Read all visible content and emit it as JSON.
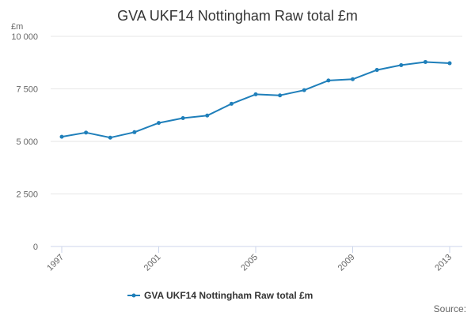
{
  "chart_data": {
    "type": "line",
    "title": "GVA UKF14 Nottingham Raw total £m",
    "ylabel": "£m",
    "xlabel": "",
    "ylim": [
      0,
      10000
    ],
    "yticks": [
      0,
      2500,
      5000,
      7500,
      10000
    ],
    "ytick_labels": [
      "0",
      "2 500",
      "5 000",
      "7 500",
      "10 000"
    ],
    "xlim": [
      1997,
      2013
    ],
    "xticks": [
      1997,
      2001,
      2005,
      2009,
      2013
    ],
    "xtick_labels": [
      "1997",
      "2001",
      "2005",
      "2009",
      "2013"
    ],
    "grid": "horizontal",
    "legend_position": "bottom-center",
    "series": [
      {
        "name": "GVA UKF14 Nottingham Raw total £m",
        "color": "#1f7fba",
        "x": [
          1997,
          1998,
          1999,
          2000,
          2001,
          2002,
          2003,
          2004,
          2005,
          2006,
          2007,
          2008,
          2009,
          2010,
          2011,
          2012,
          2013
        ],
        "values": [
          5220,
          5420,
          5180,
          5440,
          5880,
          6110,
          6230,
          6790,
          7240,
          7190,
          7440,
          7900,
          7960,
          8400,
          8630,
          8780,
          8720
        ]
      }
    ],
    "source": "Source:"
  }
}
